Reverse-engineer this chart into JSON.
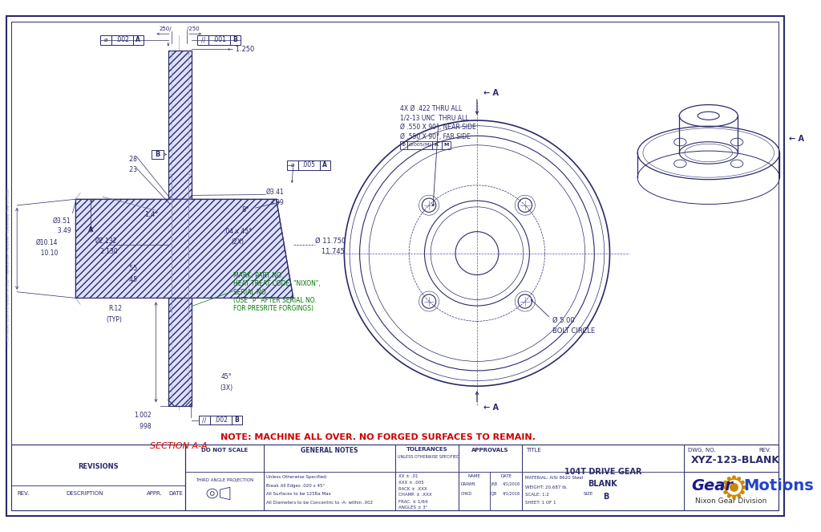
{
  "bg_color": "#ffffff",
  "line_color": "#2a2a6a",
  "green_color": "#007700",
  "red_color": "#cc0000",
  "title": "XYZ-123-BLANK",
  "drawing_title1": "104T DRIVE GEAR",
  "drawing_title2": "BLANK",
  "section_label": "SECTION A-A",
  "note": "NOTE: MACHINE ALL OVER. NO FORGED SURFACES TO REMAIN.",
  "figsize": [
    10.24,
    6.63
  ],
  "dpi": 100
}
